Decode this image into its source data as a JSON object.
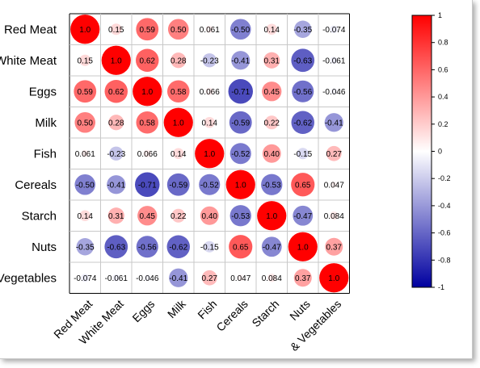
{
  "chart_data": {
    "type": "heatmap",
    "variables": [
      "Red Meat",
      "White Meat",
      "Eggs",
      "Milk",
      "Fish",
      "Cereals",
      "Starch",
      "Nuts",
      "& Vegetables"
    ],
    "matrix": [
      [
        1.0,
        0.15,
        0.59,
        0.5,
        0.061,
        -0.5,
        0.14,
        -0.35,
        -0.074
      ],
      [
        0.15,
        1.0,
        0.62,
        0.28,
        -0.23,
        -0.41,
        0.31,
        -0.63,
        -0.061
      ],
      [
        0.59,
        0.62,
        1.0,
        0.58,
        0.066,
        -0.71,
        0.45,
        -0.56,
        -0.046
      ],
      [
        0.5,
        0.28,
        0.58,
        1.0,
        0.14,
        -0.59,
        0.22,
        -0.62,
        -0.41
      ],
      [
        0.061,
        -0.23,
        0.066,
        0.14,
        1.0,
        -0.52,
        0.4,
        -0.15,
        0.27
      ],
      [
        -0.5,
        -0.41,
        -0.71,
        -0.59,
        -0.52,
        1.0,
        -0.53,
        0.65,
        0.047
      ],
      [
        0.14,
        0.31,
        0.45,
        0.22,
        0.4,
        -0.53,
        1.0,
        -0.47,
        0.084
      ],
      [
        -0.35,
        -0.63,
        -0.56,
        -0.62,
        -0.15,
        0.65,
        -0.47,
        1.0,
        0.37
      ],
      [
        -0.074,
        -0.061,
        -0.046,
        -0.41,
        0.27,
        0.047,
        0.084,
        0.37,
        1.0
      ]
    ],
    "labels": [
      [
        "1.0",
        "0.15",
        "0.59",
        "0.50",
        "0.061",
        "-0.50",
        "0.14",
        "-0.35",
        "-0.074"
      ],
      [
        "0.15",
        "1.0",
        "0.62",
        "0.28",
        "-0.23",
        "-0.41",
        "0.31",
        "-0.63",
        "-0.061"
      ],
      [
        "0.59",
        "0.62",
        "1.0",
        "0.58",
        "0.066",
        "-0.71",
        "0.45",
        "-0.56",
        "-0.046"
      ],
      [
        "0.50",
        "0.28",
        "0.58",
        "1.0",
        "0.14",
        "-0.59",
        "0.22",
        "-0.62",
        "-0.41"
      ],
      [
        "0.061",
        "-0.23",
        "0.066",
        "0.14",
        "1.0",
        "-0.52",
        "0.40",
        "-0.15",
        "0.27"
      ],
      [
        "-0.50",
        "-0.41",
        "-0.71",
        "-0.59",
        "-0.52",
        "1.0",
        "-0.53",
        "0.65",
        "0.047"
      ],
      [
        "0.14",
        "0.31",
        "0.45",
        "0.22",
        "0.40",
        "-0.53",
        "1.0",
        "-0.47",
        "0.084"
      ],
      [
        "-0.35",
        "-0.63",
        "-0.56",
        "-0.62",
        "-0.15",
        "0.65",
        "-0.47",
        "1.0",
        "0.37"
      ],
      [
        "-0.074",
        "-0.061",
        "-0.046",
        "-0.41",
        "0.27",
        "0.047",
        "0.084",
        "0.37",
        "1.0"
      ]
    ],
    "row_labels": [
      "Red Meat",
      "White Meat",
      "Eggs",
      "Milk",
      "Fish",
      "Cereals",
      "Starch",
      "Nuts",
      "Vegetables"
    ],
    "col_labels": [
      "Red Meat",
      "White Meat",
      "Eggs",
      "Milk",
      "Fish",
      "Cereals",
      "Starch",
      "Nuts",
      "& Vegetables"
    ],
    "colorbar": {
      "range": [
        -1,
        1
      ],
      "ticks": [
        "1",
        "0.8",
        "0.6",
        "0.4",
        "0.2",
        "0",
        "-0.2",
        "-0.4",
        "-0.6",
        "-0.8",
        "-1"
      ],
      "colors": {
        "negative": "#0000a0",
        "mid": "#ffffff",
        "positive": "#ff0000"
      }
    },
    "marker": "circle",
    "grid": true,
    "legend": "right"
  }
}
